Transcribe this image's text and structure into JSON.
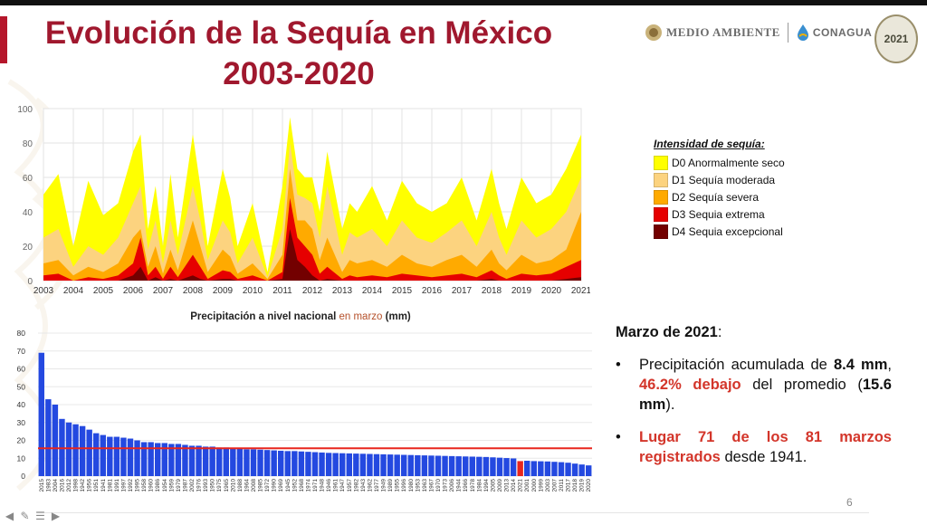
{
  "slide": {
    "title_line1": "Evolución de la Sequía en México",
    "title_line2": "2003-2020",
    "page_number": "6",
    "logos": {
      "medio_ambiente": "MEDIO AMBIENTE",
      "conagua": "CONAGUA",
      "badge_year": "2021"
    }
  },
  "legend": {
    "title": "Intensidad de sequía:",
    "items": [
      {
        "label": "D0 Anormalmente seco",
        "color": "#ffff00"
      },
      {
        "label": "D1 Sequía moderada",
        "color": "#fcd37f"
      },
      {
        "label": "D2 Sequía severa",
        "color": "#ffaa00"
      },
      {
        "label": "D3 Sequia extrema",
        "color": "#e60000"
      },
      {
        "label": "D4 Sequia excepcional",
        "color": "#730000"
      }
    ]
  },
  "summary": {
    "heading": "Marzo de 2021",
    "heading_colon": ":",
    "p1_a": "Precipitación acumulada de ",
    "p1_b": "8.4 mm",
    "p1_c": ", ",
    "p1_d": "46.2% debajo",
    "p1_e": " del promedio (",
    "p1_f": "15.6 mm",
    "p1_g": ").",
    "p2_a": "Lugar 71 de los 81 marzos registrados",
    "p2_b": " desde 1941."
  },
  "chart_data": [
    {
      "type": "area",
      "title": "",
      "ylim": [
        0,
        100
      ],
      "yticks": [
        0,
        20,
        40,
        60,
        80,
        100
      ],
      "xticks": [
        "2003",
        "2004",
        "2005",
        "2006",
        "2007",
        "2008",
        "2009",
        "2010",
        "2011",
        "2012",
        "2013",
        "2014",
        "2015",
        "2016",
        "2017",
        "2018",
        "2019",
        "2020",
        "2021"
      ],
      "x_years": [
        2003.0,
        2003.5,
        2004.0,
        2004.5,
        2005.0,
        2005.5,
        2006.0,
        2006.25,
        2006.5,
        2006.75,
        2007.0,
        2007.25,
        2007.5,
        2008.0,
        2008.25,
        2008.5,
        2009.0,
        2009.25,
        2009.5,
        2010.0,
        2010.5,
        2011.0,
        2011.25,
        2011.5,
        2011.75,
        2012.0,
        2012.25,
        2012.5,
        2013.0,
        2013.25,
        2013.5,
        2014.0,
        2014.5,
        2015.0,
        2015.5,
        2016.0,
        2016.5,
        2017.0,
        2017.5,
        2018.0,
        2018.25,
        2018.5,
        2019.0,
        2019.5,
        2020.0,
        2020.5,
        2021.0
      ],
      "series": [
        {
          "name": "D0 Anormalmente seco",
          "color": "#ffff00",
          "values": [
            50,
            62,
            20,
            58,
            38,
            45,
            75,
            85,
            30,
            55,
            20,
            62,
            25,
            85,
            55,
            20,
            65,
            48,
            20,
            45,
            5,
            55,
            95,
            65,
            60,
            60,
            40,
            75,
            30,
            45,
            40,
            55,
            35,
            58,
            45,
            40,
            45,
            60,
            35,
            65,
            45,
            30,
            60,
            45,
            50,
            65,
            85
          ]
        },
        {
          "name": "D1 Sequía moderada",
          "color": "#fcd37f",
          "values": [
            25,
            30,
            8,
            20,
            15,
            25,
            45,
            55,
            18,
            35,
            10,
            35,
            15,
            55,
            35,
            12,
            35,
            28,
            10,
            25,
            2,
            30,
            80,
            50,
            48,
            45,
            25,
            55,
            15,
            28,
            25,
            30,
            20,
            35,
            25,
            22,
            28,
            35,
            20,
            40,
            25,
            15,
            35,
            25,
            30,
            40,
            60
          ]
        },
        {
          "name": "D2 Sequía severa",
          "color": "#ffaa00",
          "values": [
            10,
            12,
            3,
            8,
            5,
            10,
            25,
            30,
            8,
            20,
            4,
            18,
            6,
            35,
            20,
            5,
            18,
            14,
            4,
            10,
            1,
            15,
            65,
            35,
            35,
            30,
            12,
            25,
            5,
            12,
            10,
            12,
            8,
            15,
            10,
            8,
            12,
            15,
            8,
            18,
            10,
            6,
            15,
            10,
            12,
            18,
            40
          ]
        },
        {
          "name": "D3 Sequia extrema",
          "color": "#e60000",
          "values": [
            3,
            4,
            0,
            2,
            1,
            3,
            10,
            25,
            3,
            8,
            1,
            8,
            2,
            15,
            8,
            1,
            6,
            5,
            1,
            3,
            0,
            5,
            48,
            25,
            20,
            15,
            4,
            8,
            1,
            3,
            2,
            3,
            2,
            4,
            3,
            2,
            3,
            4,
            2,
            6,
            3,
            1,
            4,
            3,
            4,
            8,
            12
          ]
        },
        {
          "name": "D4 Sequia excepcional",
          "color": "#730000",
          "values": [
            0,
            0,
            0,
            0,
            0,
            0,
            3,
            8,
            0,
            2,
            0,
            1,
            0,
            3,
            1,
            0,
            1,
            1,
            0,
            0,
            0,
            1,
            30,
            12,
            8,
            3,
            0,
            1,
            0,
            0,
            0,
            0,
            0,
            0,
            0,
            0,
            0,
            0,
            0,
            1,
            0,
            0,
            0,
            0,
            0,
            1,
            2
          ]
        }
      ]
    },
    {
      "type": "bar",
      "title": "Precipitación a nivel nacional",
      "title_mid": " en marzo",
      "title_end": " (mm)",
      "ylim": [
        0,
        80
      ],
      "yticks": [
        0,
        10,
        20,
        30,
        40,
        50,
        60,
        70,
        80
      ],
      "average": 15.6,
      "bar_color": "#2449e0",
      "highlight_color": "#e8261e",
      "average_color": "#e8261e",
      "highlight_index": 70,
      "categories": [
        "2015",
        "1983",
        "2004",
        "2016",
        "2012",
        "1998",
        "1942",
        "1956",
        "1951",
        "1941",
        "1981",
        "1991",
        "1997",
        "1992",
        "1995",
        "1958",
        "1960",
        "1986",
        "1954",
        "1959",
        "1979",
        "1987",
        "2002",
        "1976",
        "1993",
        "1950",
        "1975",
        "1965",
        "2010",
        "1988",
        "1964",
        "2008",
        "1985",
        "1972",
        "1990",
        "1969",
        "1945",
        "1952",
        "1968",
        "1974",
        "1971",
        "1948",
        "1946",
        "1961",
        "1947",
        "1957",
        "1982",
        "1943",
        "1962",
        "1977",
        "1949",
        "1989",
        "1955",
        "1996",
        "1980",
        "1953",
        "1963",
        "1967",
        "1970",
        "1973",
        "2006",
        "1944",
        "1966",
        "1978",
        "1984",
        "1994",
        "2005",
        "2009",
        "2013",
        "2014",
        "2021",
        "2001",
        "2000",
        "1999",
        "2003",
        "2007",
        "2011",
        "2017",
        "2018",
        "2019",
        "2020"
      ],
      "values": [
        69,
        43,
        40,
        32,
        30,
        29,
        28,
        26,
        24,
        23,
        22,
        22,
        21.5,
        21,
        20,
        19,
        19,
        18.5,
        18.5,
        18,
        18,
        17.5,
        17,
        17,
        16.5,
        16.5,
        16,
        16,
        15.5,
        15.5,
        15,
        15,
        14.8,
        14.6,
        14.4,
        14.2,
        14,
        14,
        13.8,
        13.6,
        13.4,
        13.2,
        13,
        12.9,
        12.8,
        12.7,
        12.6,
        12.5,
        12.4,
        12.3,
        12.2,
        12.1,
        12,
        11.9,
        11.8,
        11.7,
        11.6,
        11.5,
        11.4,
        11.3,
        11.2,
        11.1,
        11,
        10.9,
        10.8,
        10.7,
        10.5,
        10.3,
        10.1,
        9.9,
        8.4,
        8.6,
        8.4,
        8.3,
        8.2,
        8.0,
        7.8,
        7.5,
        7,
        6.5,
        6
      ]
    }
  ]
}
